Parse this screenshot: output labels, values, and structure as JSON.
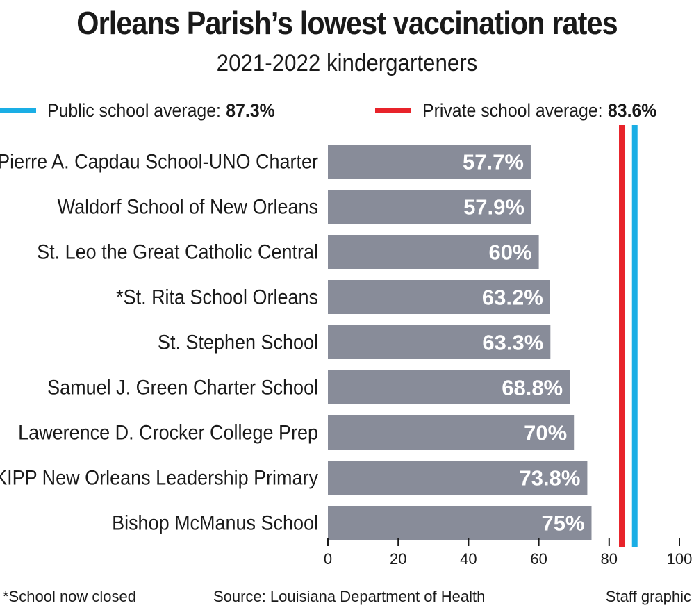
{
  "header": {
    "title": "Orleans Parish’s lowest vaccination rates",
    "subtitle": "2021-2022 kindergarteners"
  },
  "legend": [
    {
      "label": "Public school average:",
      "value": "87.3%",
      "color": "#1aaee5"
    },
    {
      "label": "Private school average:",
      "value": "83.6%",
      "color": "#e8232a"
    }
  ],
  "chart_data": {
    "type": "bar",
    "orientation": "horizontal",
    "categories": [
      "Pierre A. Capdau School-UNO Charter",
      "Waldorf School of New Orleans",
      "St. Leo the Great Catholic Central",
      "*St. Rita School Orleans",
      "St. Stephen School",
      "Samuel J. Green Charter School",
      "Lawerence D. Crocker College Prep",
      "KIPP New Orleans Leadership Primary",
      "Bishop McManus School"
    ],
    "values": [
      57.7,
      57.9,
      60,
      63.2,
      63.3,
      68.8,
      70,
      73.8,
      75
    ],
    "value_labels": [
      "57.7%",
      "57.9%",
      "60%",
      "63.2%",
      "63.3%",
      "68.8%",
      "70%",
      "73.8%",
      "75%"
    ],
    "xlim": [
      0,
      100
    ],
    "xticks": [
      0,
      20,
      40,
      60,
      80,
      100
    ],
    "reference_lines": [
      {
        "name": "Private school average",
        "value": 83.6,
        "color": "#e8232a"
      },
      {
        "name": "Public school average",
        "value": 87.3,
        "color": "#1aaee5"
      }
    ],
    "bar_color": "#888c99",
    "grid": false
  },
  "footer": {
    "note": "*School now closed",
    "source": "Source: Louisiana Department of Health",
    "credit": "Staff graphic"
  }
}
